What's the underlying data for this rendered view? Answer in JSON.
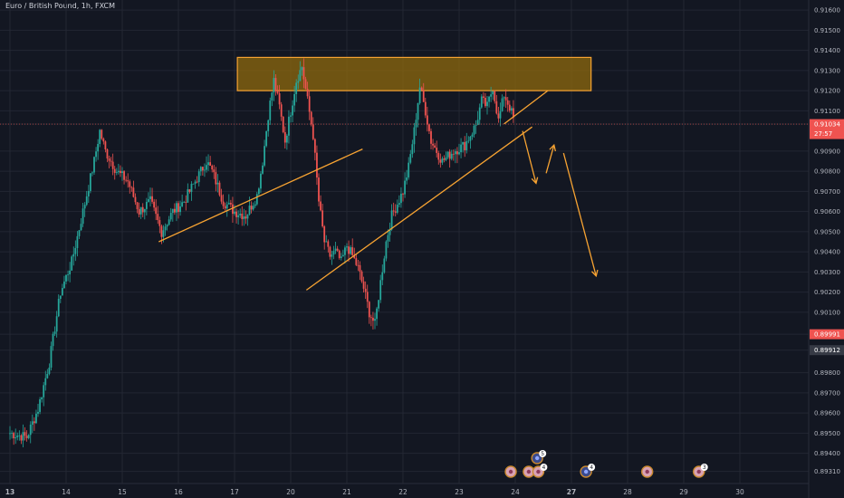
{
  "header": {
    "symbol_label": "Euro / British Pound, 1h, FXCM"
  },
  "colors": {
    "background": "#131722",
    "up": "#26a69a",
    "down": "#ef5350",
    "annotation": "#f7a332",
    "zone_fill": "#8f6a0e",
    "price_tag_current": "#ef5350",
    "price_tag_level": "#363a45"
  },
  "chart_data": {
    "type": "candlestick",
    "timeframe": "1h",
    "ylim": [
      0.8925,
      0.9165
    ],
    "xlim": [
      0,
      139
    ],
    "y_ticks": [
      "0.91600",
      "0.91500",
      "0.91400",
      "0.91300",
      "0.91200",
      "0.91100",
      "0.91034",
      "0.90900",
      "0.90800",
      "0.90700",
      "0.90600",
      "0.90500",
      "0.90400",
      "0.90300",
      "0.90200",
      "0.90100",
      "0.89991",
      "0.89912",
      "0.89800",
      "0.89700",
      "0.89600",
      "0.89500",
      "0.89400",
      "0.89310"
    ],
    "x_ticks": [
      {
        "label": "13",
        "x": 0,
        "bold": true
      },
      {
        "label": "14",
        "x": 10
      },
      {
        "label": "15",
        "x": 20
      },
      {
        "label": "16",
        "x": 30
      },
      {
        "label": "17",
        "x": 40
      },
      {
        "label": "20",
        "x": 50
      },
      {
        "label": "21",
        "x": 60
      },
      {
        "label": "22",
        "x": 70
      },
      {
        "label": "23",
        "x": 80
      },
      {
        "label": "24",
        "x": 90
      },
      {
        "label": "27",
        "x": 100,
        "bold": true
      },
      {
        "label": "28",
        "x": 110
      },
      {
        "label": "29",
        "x": 120
      },
      {
        "label": "30",
        "x": 130
      }
    ],
    "price_tags": [
      {
        "value": 0.91034,
        "label": "0.91034",
        "sub": "27:57",
        "kind": "current"
      },
      {
        "value": 0.89991,
        "label": "0.89991",
        "kind": "current"
      },
      {
        "value": 0.89912,
        "label": "0.89912",
        "kind": "level"
      }
    ],
    "anchors": [
      [
        0,
        0.895
      ],
      [
        3,
        0.8948
      ],
      [
        5,
        0.8962
      ],
      [
        7,
        0.8985
      ],
      [
        9,
        0.902
      ],
      [
        11,
        0.9035
      ],
      [
        13,
        0.906
      ],
      [
        15,
        0.9085
      ],
      [
        16,
        0.91
      ],
      [
        17,
        0.909
      ],
      [
        19,
        0.908
      ],
      [
        21,
        0.9075
      ],
      [
        23,
        0.906
      ],
      [
        25,
        0.9065
      ],
      [
        27,
        0.905
      ],
      [
        29,
        0.906
      ],
      [
        31,
        0.9065
      ],
      [
        33,
        0.9075
      ],
      [
        35,
        0.9085
      ],
      [
        36,
        0.908
      ],
      [
        38,
        0.9065
      ],
      [
        40,
        0.906
      ],
      [
        42,
        0.9058
      ],
      [
        44,
        0.9068
      ],
      [
        45,
        0.9085
      ],
      [
        46,
        0.9108
      ],
      [
        47,
        0.9125
      ],
      [
        48,
        0.9112
      ],
      [
        49,
        0.9095
      ],
      [
        50,
        0.911
      ],
      [
        51,
        0.9125
      ],
      [
        52,
        0.9132
      ],
      [
        53,
        0.9115
      ],
      [
        54,
        0.9098
      ],
      [
        55,
        0.9065
      ],
      [
        56,
        0.9045
      ],
      [
        57,
        0.9038
      ],
      [
        58,
        0.904
      ],
      [
        59,
        0.9035
      ],
      [
        60,
        0.9043
      ],
      [
        61,
        0.9038
      ],
      [
        62,
        0.9032
      ],
      [
        63,
        0.9022
      ],
      [
        64,
        0.901
      ],
      [
        65,
        0.9004
      ],
      [
        66,
        0.9025
      ],
      [
        67,
        0.9045
      ],
      [
        68,
        0.9058
      ],
      [
        70,
        0.907
      ],
      [
        71,
        0.9082
      ],
      [
        72,
        0.91
      ],
      [
        73,
        0.9122
      ],
      [
        74,
        0.911
      ],
      [
        75,
        0.9095
      ],
      [
        77,
        0.9085
      ],
      [
        79,
        0.909
      ],
      [
        81,
        0.9093
      ],
      [
        82,
        0.9098
      ],
      [
        83,
        0.9103
      ],
      [
        84,
        0.9115
      ],
      [
        85,
        0.9112
      ],
      [
        86,
        0.9122
      ],
      [
        87,
        0.9105
      ],
      [
        88,
        0.9118
      ],
      [
        89,
        0.9112
      ],
      [
        90,
        0.9103
      ]
    ],
    "annotations": {
      "resistance_zone": {
        "x": [
          40.5,
          103.5
        ],
        "y": [
          0.912,
          0.91365
        ]
      },
      "lines": [
        {
          "name": "neckline-left",
          "from": [
            26.5,
            0.9045
          ],
          "to": [
            62.8,
            0.9091
          ]
        },
        {
          "name": "neckline-right",
          "from": [
            52.8,
            0.9021
          ],
          "to": [
            93,
            0.9102
          ]
        },
        {
          "name": "rising-support",
          "from": [
            88,
            0.91035
          ],
          "to": [
            95.8,
            0.912
          ]
        }
      ],
      "arrows": [
        {
          "name": "arrow-down-1",
          "from": [
            91.3,
            0.91
          ],
          "to": [
            93.7,
            0.9074
          ]
        },
        {
          "name": "arrow-up",
          "from": [
            95.5,
            0.9079
          ],
          "to": [
            96.9,
            0.9093
          ]
        },
        {
          "name": "arrow-down-2",
          "from": [
            98.6,
            0.9089
          ],
          "to": [
            104.4,
            0.9028
          ]
        }
      ]
    },
    "event_markers": [
      {
        "x": 89.2,
        "kind": "flag",
        "count": ""
      },
      {
        "x": 92.4,
        "kind": "flag",
        "count": ""
      },
      {
        "x": 93.9,
        "kind": "user",
        "count": "5",
        "stack": true
      },
      {
        "x": 94.1,
        "kind": "flag",
        "count": "4"
      },
      {
        "x": 102.6,
        "kind": "user",
        "count": "4"
      },
      {
        "x": 113.5,
        "kind": "flag",
        "count": ""
      },
      {
        "x": 122.7,
        "kind": "flag",
        "count": "3"
      }
    ]
  }
}
